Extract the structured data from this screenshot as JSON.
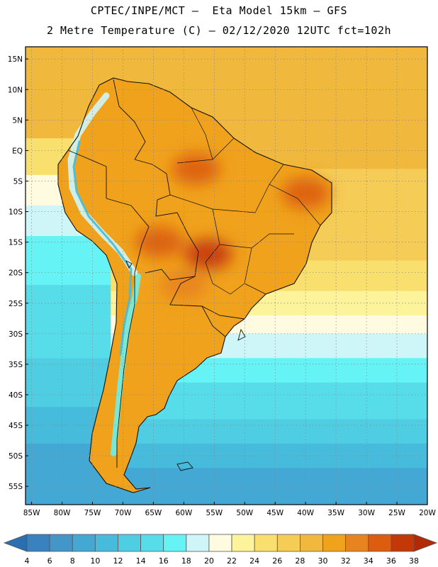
{
  "header": {
    "line1": "CPTEC/INPE/MCT –  Eta Model 15km – GFS",
    "line2": "2 Metre Temperature (C) – 02/12/2020 12UTC fct=102h"
  },
  "map": {
    "lat_range": [
      -58,
      17
    ],
    "lon_range": [
      -86,
      -20
    ],
    "lat_ticks": [
      "15N",
      "10N",
      "5N",
      "EQ",
      "5S",
      "10S",
      "15S",
      "20S",
      "25S",
      "30S",
      "35S",
      "40S",
      "45S",
      "50S",
      "55S"
    ],
    "lat_values": [
      15,
      10,
      5,
      0,
      -5,
      -10,
      -15,
      -20,
      -25,
      -30,
      -35,
      -40,
      -45,
      -50,
      -55
    ],
    "lon_ticks": [
      "85W",
      "80W",
      "75W",
      "70W",
      "65W",
      "60W",
      "55W",
      "50W",
      "45W",
      "40W",
      "35W",
      "30W",
      "25W",
      "20W"
    ],
    "lon_values": [
      -85,
      -80,
      -75,
      -70,
      -65,
      -60,
      -55,
      -50,
      -45,
      -40,
      -35,
      -30,
      -25,
      -20
    ],
    "ocean_bands": [
      {
        "lat_from": 17,
        "lat_to": -3,
        "temp": 28
      },
      {
        "lat_from": -3,
        "lat_to": -18,
        "temp": 26
      },
      {
        "lat_from": -18,
        "lat_to": -23,
        "temp": 24
      },
      {
        "lat_from": -23,
        "lat_to": -27,
        "temp": 22
      },
      {
        "lat_from": -27,
        "lat_to": -30,
        "temp": 20
      },
      {
        "lat_from": -30,
        "lat_to": -34,
        "temp": 18
      },
      {
        "lat_from": -34,
        "lat_to": -38,
        "temp": 16
      },
      {
        "lat_from": -38,
        "lat_to": -44,
        "temp": 14
      },
      {
        "lat_from": -44,
        "lat_to": -48,
        "temp": 12
      },
      {
        "lat_from": -48,
        "lat_to": -52,
        "temp": 10
      },
      {
        "lat_from": -52,
        "lat_to": -58,
        "temp": 8
      }
    ],
    "pacific_bands": [
      {
        "lat_from": 17,
        "lat_to": 2,
        "temp": 28
      },
      {
        "lat_from": 2,
        "lat_to": -4,
        "temp": 24
      },
      {
        "lat_from": -4,
        "lat_to": -9,
        "temp": 20
      },
      {
        "lat_from": -9,
        "lat_to": -14,
        "temp": 18
      },
      {
        "lat_from": -14,
        "lat_to": -22,
        "temp": 16
      },
      {
        "lat_from": -22,
        "lat_to": -34,
        "temp": 14
      },
      {
        "lat_from": -34,
        "lat_to": -42,
        "temp": 12
      },
      {
        "lat_from": -42,
        "lat_to": -48,
        "temp": 10
      },
      {
        "lat_from": -48,
        "lat_to": -58,
        "temp": 8
      }
    ],
    "land_temp": 30,
    "hot_regions": [
      {
        "name": "amazon",
        "lon": -58,
        "lat": -3,
        "temp": 34
      },
      {
        "name": "northeast-brazil",
        "lon": -40,
        "lat": -7,
        "temp": 34
      },
      {
        "name": "mato-grosso",
        "lon": -56,
        "lat": -17,
        "temp": 36
      },
      {
        "name": "bolivia-lowlands",
        "lon": -64,
        "lat": -15,
        "temp": 34
      },
      {
        "name": "chaco",
        "lon": -60,
        "lat": -22,
        "temp": 32
      }
    ],
    "cool_regions": [
      {
        "name": "andes-north",
        "temp": 18
      },
      {
        "name": "andes-south",
        "temp": 16
      }
    ]
  },
  "colorbar": {
    "labels": [
      "4",
      "6",
      "8",
      "10",
      "12",
      "14",
      "16",
      "18",
      "20",
      "22",
      "24",
      "26",
      "28",
      "30",
      "32",
      "34",
      "36",
      "38"
    ],
    "colors": [
      "#2a6fb0",
      "#3782bf",
      "#4396c9",
      "#44a8d4",
      "#46bbdc",
      "#4fcde3",
      "#56dde9",
      "#66f3f5",
      "#cef5f8",
      "#fffbe0",
      "#fdf39a",
      "#f9e06e",
      "#f5cc55",
      "#f0b83c",
      "#f0a21c",
      "#e88420",
      "#dc5d10",
      "#c43808",
      "#b22a04"
    ]
  }
}
